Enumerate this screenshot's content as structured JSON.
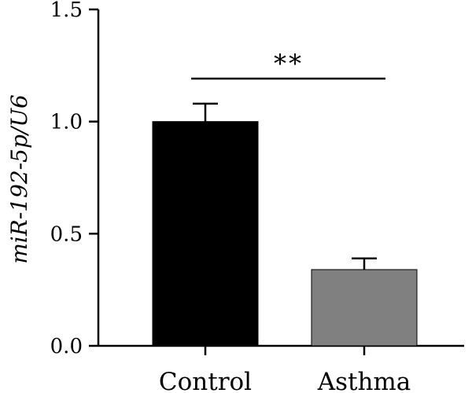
{
  "chart_data": {
    "type": "bar",
    "categories": [
      "Control",
      "Asthma"
    ],
    "values": [
      1.0,
      0.34
    ],
    "errors": [
      0.08,
      0.05
    ],
    "ylabel": "miR-192-5p/U6",
    "xlabel": "",
    "ylim": [
      0,
      1.5
    ],
    "yticks": [
      0.0,
      0.5,
      1.0,
      1.5
    ],
    "ytick_labels": [
      "0.0",
      "0.5",
      "1.0",
      "1.5"
    ],
    "bar_colors": [
      "#000000",
      "#808080"
    ],
    "significance": {
      "label": "**",
      "between": [
        "Control",
        "Asthma"
      ]
    },
    "grid": false,
    "legend": "none"
  }
}
